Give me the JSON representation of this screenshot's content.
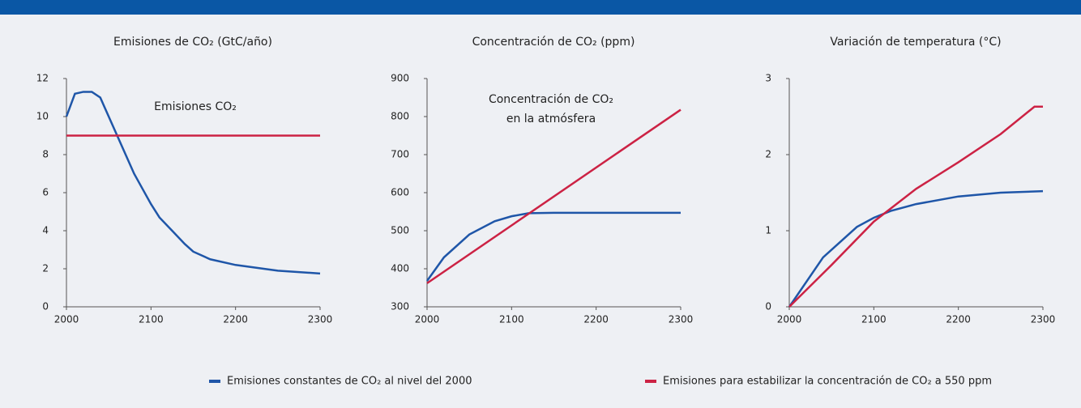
{
  "chart_data": [
    {
      "type": "line",
      "title": "Emisiones de CO₂ (GtC/año)",
      "annotations": [
        "Emisiones CO₂"
      ],
      "xlim": [
        2000,
        2300
      ],
      "xticks": [
        2000,
        2100,
        2200,
        2300
      ],
      "ylim": [
        0,
        12
      ],
      "yticks": [
        0,
        2,
        4,
        6,
        8,
        10,
        12
      ],
      "series": [
        {
          "name": "Emisiones constantes de CO₂ al nivel del 2000",
          "color": "#1f56a8",
          "x": [
            2000,
            2010,
            2020,
            2030,
            2040,
            2050,
            2060,
            2070,
            2080,
            2090,
            2100,
            2110,
            2125,
            2140,
            2150,
            2170,
            2200,
            2250,
            2300
          ],
          "values": [
            10,
            11.2,
            11.3,
            11.3,
            11,
            10,
            9,
            8,
            7,
            6.2,
            5.4,
            4.7,
            4,
            3.3,
            2.9,
            2.5,
            2.2,
            1.9,
            1.75
          ]
        },
        {
          "name": "Emisiones para estabilizar la concentración de CO₂ a 550 ppm",
          "color": "#cc2244",
          "x": [
            2000,
            2300
          ],
          "values": [
            9,
            9
          ]
        }
      ]
    },
    {
      "type": "line",
      "title": "Concentración de CO₂ (ppm)",
      "annotations": [
        "Concentración de CO₂",
        "en la atmósfera"
      ],
      "xlim": [
        2000,
        2300
      ],
      "xticks": [
        2000,
        2100,
        2200,
        2300
      ],
      "ylim": [
        300,
        900
      ],
      "yticks": [
        300,
        400,
        500,
        600,
        700,
        800,
        900
      ],
      "series": [
        {
          "color": "#1f56a8",
          "x": [
            2000,
            2020,
            2050,
            2080,
            2100,
            2120,
            2150,
            2300
          ],
          "values": [
            368,
            430,
            490,
            525,
            538,
            546,
            547,
            547
          ]
        },
        {
          "color": "#cc2244",
          "x": [
            2000,
            2300
          ],
          "values": [
            362,
            818
          ]
        }
      ]
    },
    {
      "type": "line",
      "title": "Variación de temperatura (°C)",
      "xlim": [
        2000,
        2300
      ],
      "xticks": [
        2000,
        2100,
        2200,
        2300
      ],
      "ylim": [
        0,
        3
      ],
      "yticks": [
        0,
        1,
        2,
        3
      ],
      "series": [
        {
          "color": "#1f56a8",
          "x": [
            2000,
            2040,
            2080,
            2100,
            2120,
            2150,
            2200,
            2250,
            2300
          ],
          "values": [
            0,
            0.65,
            1.05,
            1.17,
            1.26,
            1.35,
            1.45,
            1.5,
            1.52
          ]
        },
        {
          "color": "#cc2244",
          "x": [
            2000,
            2050,
            2100,
            2150,
            2200,
            2250,
            2290,
            2300
          ],
          "values": [
            0,
            0.55,
            1.12,
            1.55,
            1.9,
            2.27,
            2.63,
            2.63
          ]
        }
      ]
    }
  ]
}
